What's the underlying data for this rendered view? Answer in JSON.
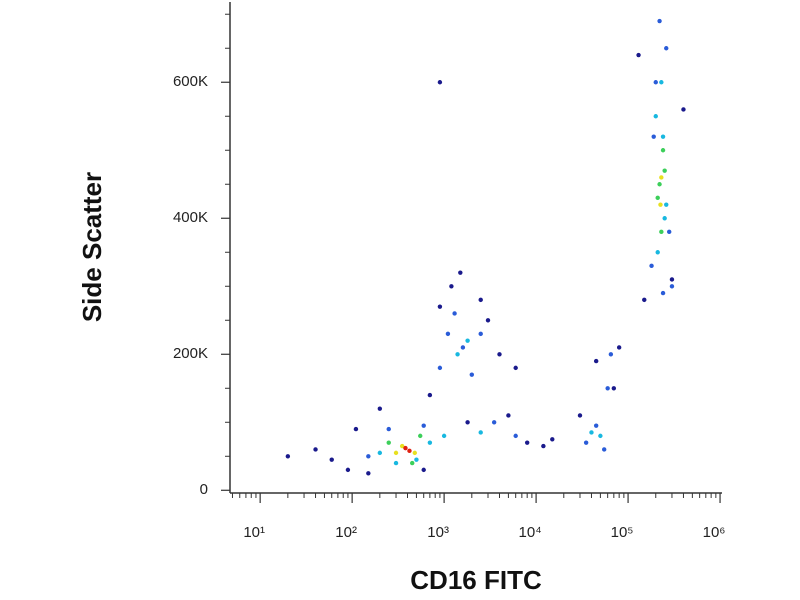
{
  "chart_data": {
    "type": "scatter",
    "x_label": "CD16 FITC",
    "y_label": "Side Scatter",
    "x_log": true,
    "xlim": [
      4.7,
      1050000
    ],
    "ylim": [
      -4000,
      718000
    ],
    "xticks": [
      {
        "value": 10,
        "label": "10¹"
      },
      {
        "value": 100,
        "label": "10²"
      },
      {
        "value": 1000,
        "label": "10³"
      },
      {
        "value": 10000,
        "label": "10⁴"
      },
      {
        "value": 100000,
        "label": "10⁵"
      },
      {
        "value": 1000000,
        "label": "10⁶"
      }
    ],
    "xminorticks": [
      5,
      6,
      7,
      8,
      9,
      20,
      30,
      40,
      50,
      60,
      70,
      80,
      90,
      200,
      300,
      400,
      500,
      600,
      700,
      800,
      900,
      2000,
      3000,
      4000,
      5000,
      6000,
      7000,
      8000,
      9000,
      20000,
      30000,
      40000,
      50000,
      60000,
      70000,
      80000,
      90000,
      200000,
      300000,
      400000,
      500000,
      600000,
      700000,
      800000,
      900000
    ],
    "yticks": [
      {
        "value": 0,
        "label": "0"
      },
      {
        "value": 200000,
        "label": "200K"
      },
      {
        "value": 400000,
        "label": "400K"
      },
      {
        "value": 600000,
        "label": "600K"
      }
    ],
    "yminorticks": [
      50000,
      100000,
      150000,
      250000,
      300000,
      350000,
      450000,
      500000,
      550000,
      650000,
      700000
    ],
    "series": [
      {
        "color": "#1a1a8c",
        "x": [
          60,
          90,
          150,
          200,
          700,
          1200,
          2500,
          4000,
          8000,
          15000,
          30000,
          70000,
          20,
          40,
          110,
          600,
          900,
          1500,
          3000,
          6000,
          12000,
          45000,
          80000,
          130000,
          400000,
          300000,
          150000,
          1800,
          5000,
          900
        ],
        "values": [
          45000,
          30000,
          25000,
          120000,
          140000,
          300000,
          280000,
          200000,
          70000,
          75000,
          110000,
          150000,
          50000,
          60000,
          90000,
          30000,
          270000,
          320000,
          250000,
          180000,
          65000,
          190000,
          210000,
          640000,
          560000,
          310000,
          280000,
          100000,
          110000,
          600000
        ]
      },
      {
        "color": "#2a5cd8",
        "x": [
          150,
          250,
          600,
          900,
          1100,
          1300,
          1600,
          2000,
          2500,
          3500,
          6000,
          35000,
          45000,
          55000,
          60000,
          65000,
          180000,
          200000,
          260000,
          280000,
          190000,
          300000,
          220000,
          240000
        ],
        "values": [
          50000,
          90000,
          95000,
          180000,
          230000,
          260000,
          210000,
          170000,
          230000,
          100000,
          80000,
          70000,
          95000,
          60000,
          150000,
          200000,
          330000,
          600000,
          650000,
          380000,
          520000,
          300000,
          690000,
          290000
        ]
      },
      {
        "color": "#18b8e0",
        "x": [
          200,
          300,
          500,
          700,
          1000,
          1400,
          1800,
          2500,
          40000,
          50000,
          200000,
          230000,
          250000,
          210000,
          240000,
          260000
        ],
        "values": [
          55000,
          40000,
          45000,
          70000,
          80000,
          200000,
          220000,
          85000,
          85000,
          80000,
          550000,
          600000,
          400000,
          350000,
          520000,
          420000
        ]
      },
      {
        "color": "#3ccf5a",
        "x": [
          250,
          450,
          550,
          220000,
          240000,
          230000,
          210000,
          250000
        ],
        "values": [
          70000,
          40000,
          80000,
          450000,
          500000,
          380000,
          430000,
          470000
        ]
      },
      {
        "color": "#e8e020",
        "x": [
          350,
          300,
          480,
          230000,
          225000
        ],
        "values": [
          65000,
          55000,
          55000,
          460000,
          420000
        ]
      },
      {
        "color": "#e02010",
        "x": [
          380,
          420
        ],
        "values": [
          62000,
          58000
        ]
      }
    ]
  }
}
